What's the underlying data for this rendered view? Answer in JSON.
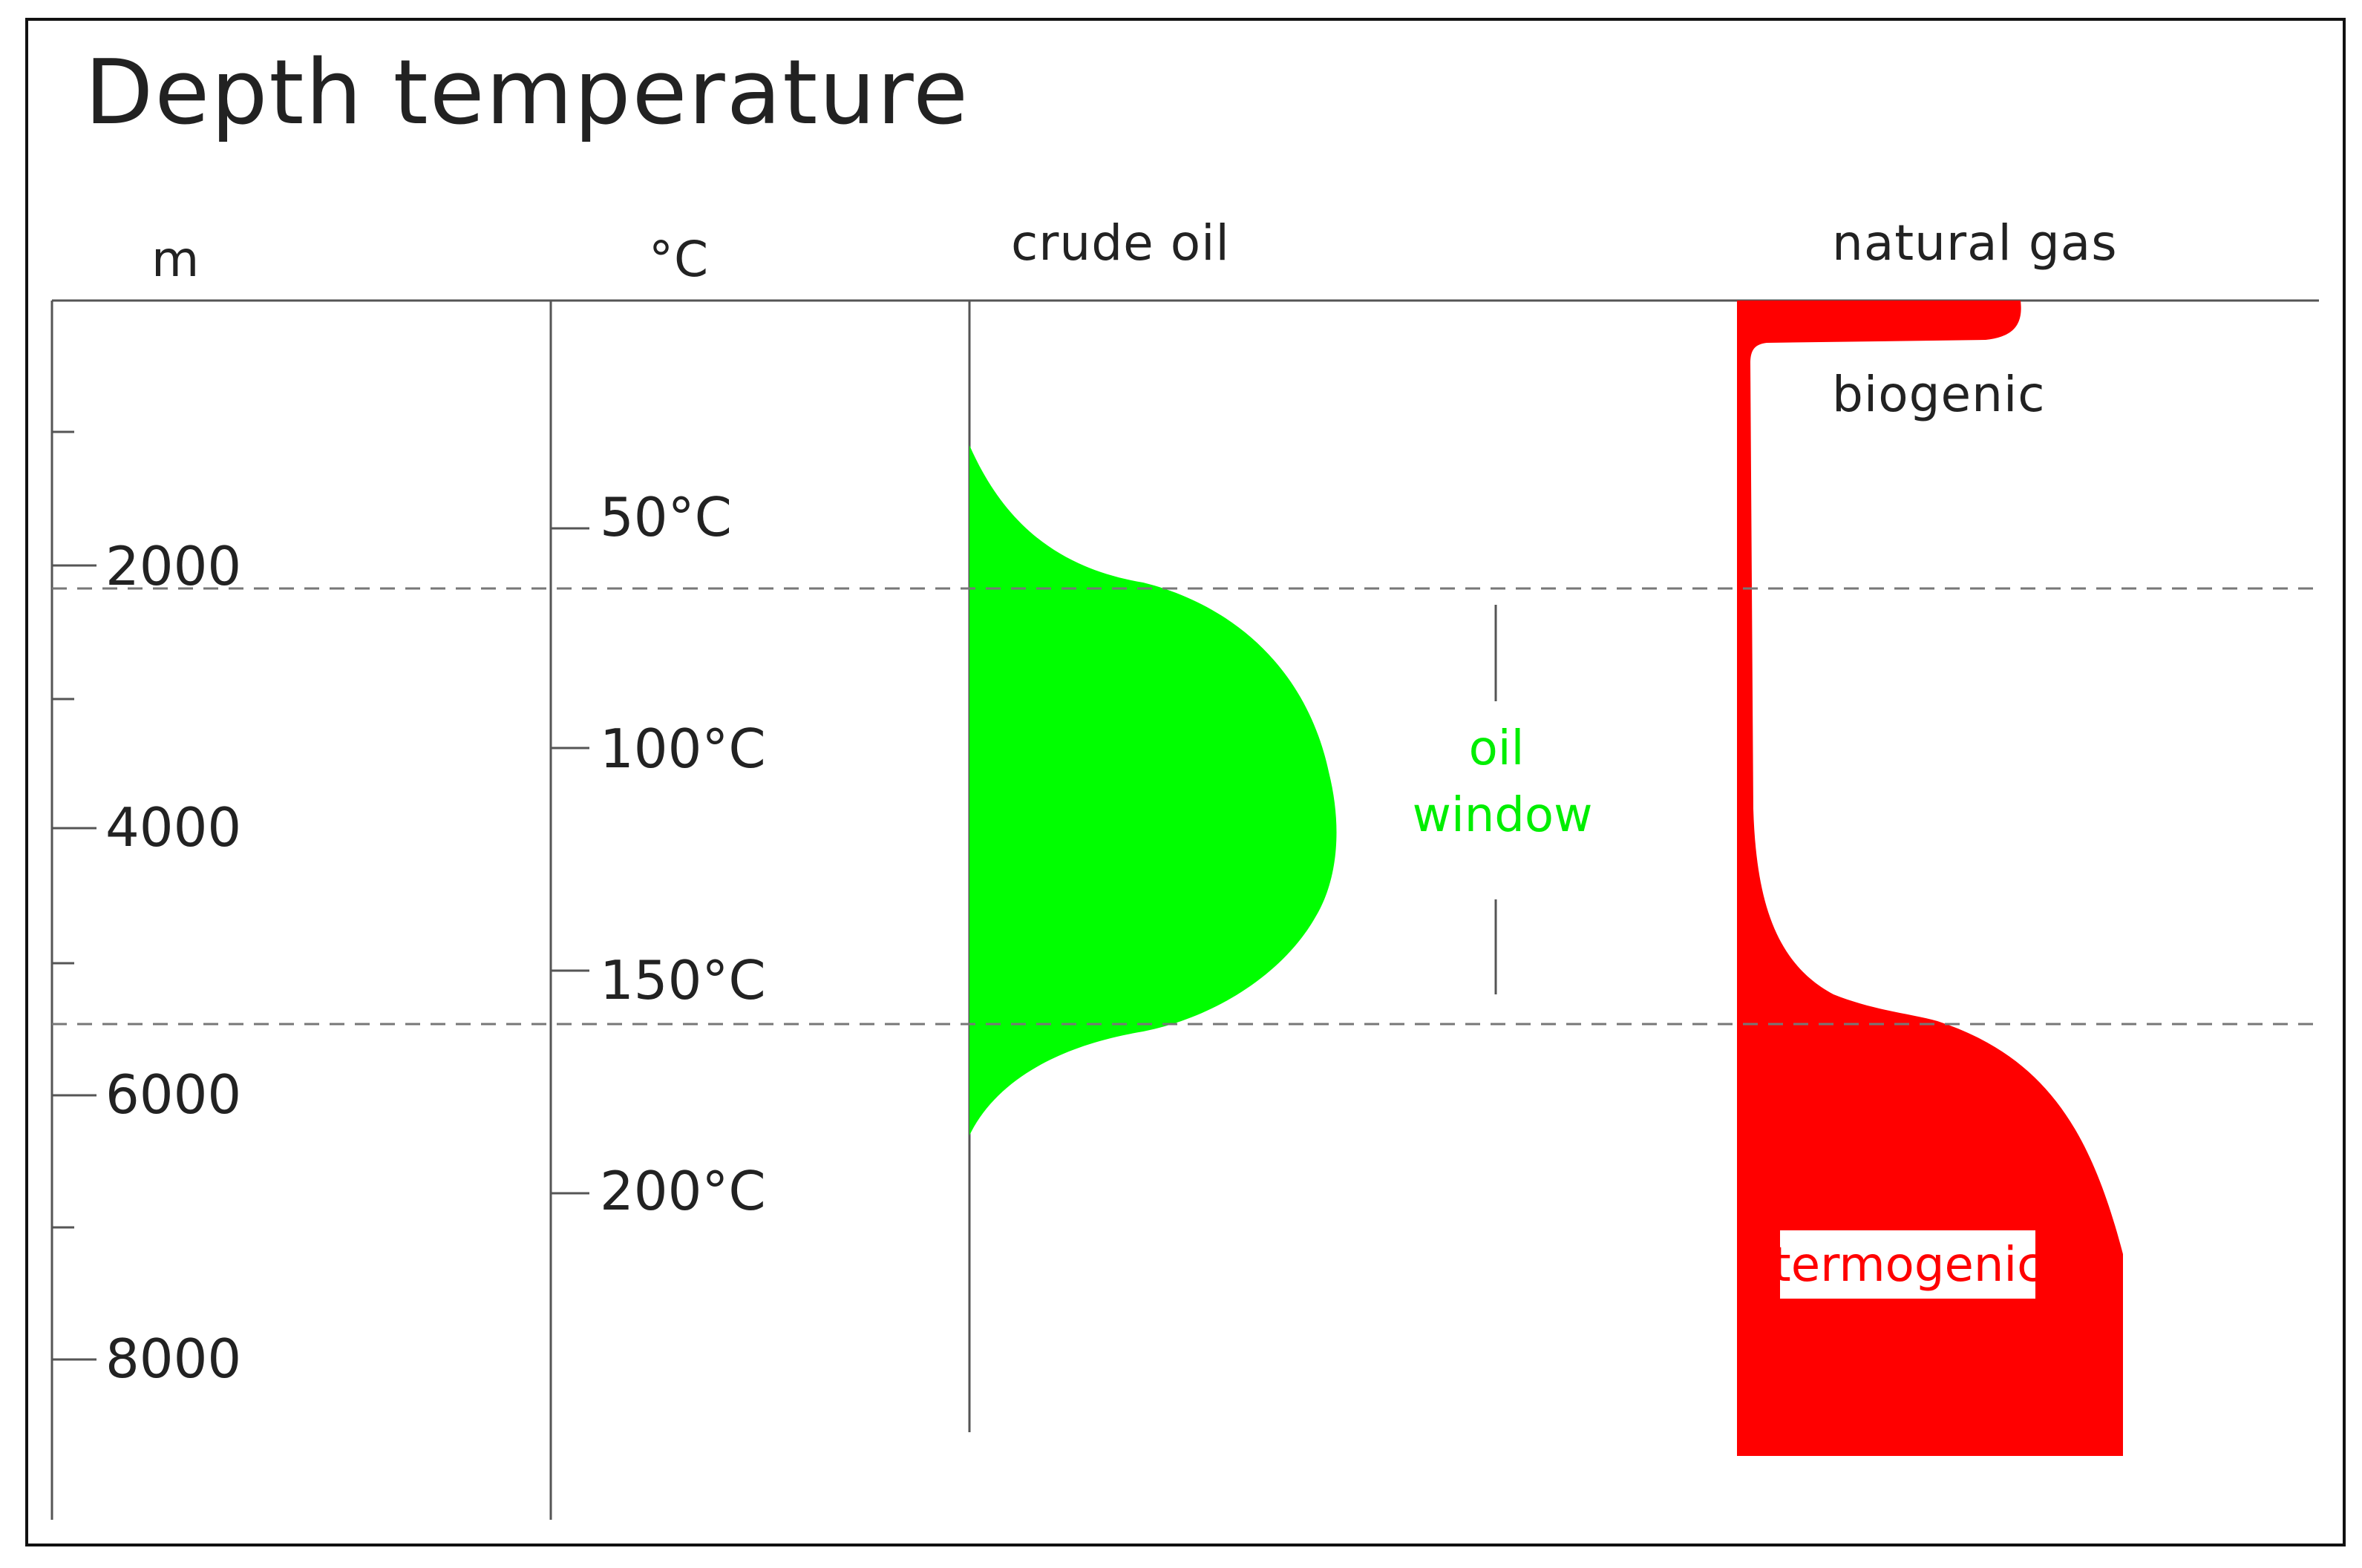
{
  "title": "Depth  temperature",
  "columns": {
    "depth_unit": "m",
    "temp_unit": "°C",
    "crude_oil": "crude  oil",
    "natural_gas": "natural  gas"
  },
  "depth_ticks": [
    {
      "label": "2000",
      "value": 2000
    },
    {
      "label": "4000",
      "value": 4000
    },
    {
      "label": "6000",
      "value": 6000
    },
    {
      "label": "8000",
      "value": 8000
    }
  ],
  "temperature_ticks": [
    {
      "label": "50°C",
      "value": 50
    },
    {
      "label": "100°C",
      "value": 100
    },
    {
      "label": "150°C",
      "value": 150
    },
    {
      "label": "200°C",
      "value": 200
    }
  ],
  "labels": {
    "oil_window_line1": "oil",
    "oil_window_line2": "window",
    "biogenic": "biogenic",
    "termogenic": "termogenic"
  },
  "colors": {
    "crude_oil": "#00ff00",
    "natural_gas": "#ff0000",
    "oil_window_text": "#00ee00",
    "axis": "#555555",
    "dashed_boundary": "#777777"
  }
}
